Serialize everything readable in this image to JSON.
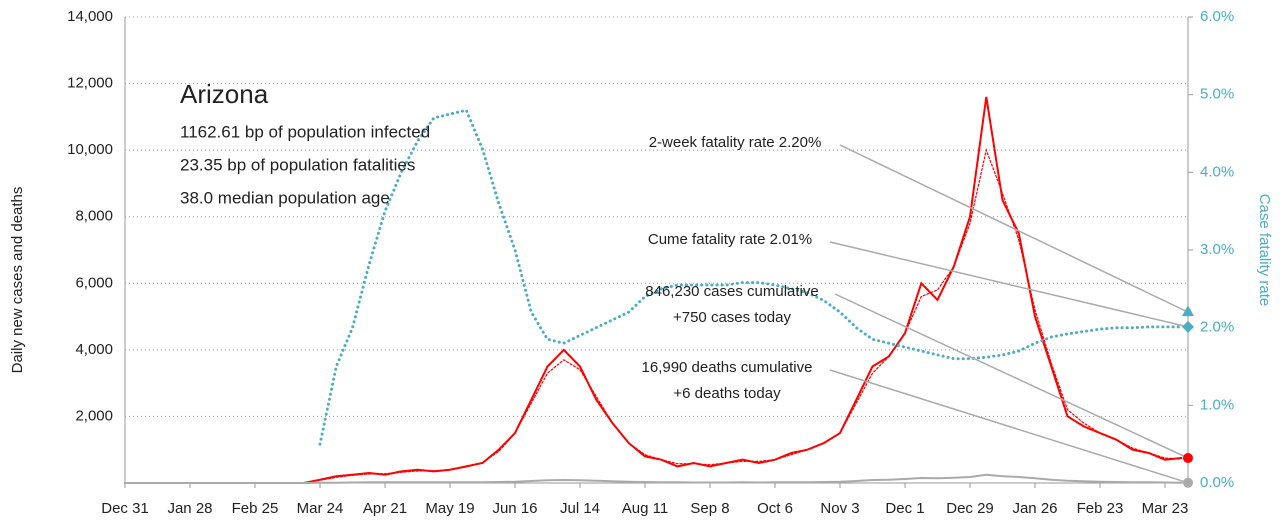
{
  "chart_data": {
    "type": "line",
    "categories": [
      "Dec 31",
      null,
      null,
      null,
      "Jan 28",
      null,
      null,
      null,
      "Feb 25",
      null,
      null,
      null,
      "Mar 24",
      null,
      null,
      null,
      "Apr 21",
      null,
      null,
      null,
      "May 19",
      null,
      null,
      null,
      "Jun 16",
      null,
      null,
      null,
      "Jul 14",
      null,
      null,
      null,
      "Aug 11",
      null,
      null,
      null,
      "Sep 8",
      null,
      null,
      null,
      "Oct 6",
      null,
      null,
      null,
      "Nov 3",
      null,
      null,
      null,
      "Dec 1",
      null,
      null,
      null,
      "Dec 29",
      null,
      null,
      null,
      "Jan 26",
      null,
      null,
      null,
      "Feb 23",
      null,
      null,
      null,
      "Mar 23",
      null
    ],
    "ylabel": "Daily new cases and deaths",
    "y2label": "Case fatality rate",
    "ylim": [
      0,
      14000
    ],
    "yticks": [
      {
        "value": 2000,
        "label": "2,000"
      },
      {
        "value": 4000,
        "label": "4,000"
      },
      {
        "value": 6000,
        "label": "6,000"
      },
      {
        "value": 8000,
        "label": "8,000"
      },
      {
        "value": 10000,
        "label": "10,000"
      },
      {
        "value": 12000,
        "label": "12,000"
      },
      {
        "value": 14000,
        "label": "14,000"
      }
    ],
    "y2lim": [
      0,
      6
    ],
    "y2ticks": [
      {
        "value": 0,
        "label": "0.0%"
      },
      {
        "value": 1,
        "label": "1.0%"
      },
      {
        "value": 2,
        "label": "2.0%"
      },
      {
        "value": 3,
        "label": "3.0%"
      },
      {
        "value": 4,
        "label": "4.0%"
      },
      {
        "value": 5,
        "label": "5.0%"
      },
      {
        "value": 6,
        "label": "6.0%"
      }
    ],
    "grid": true,
    "series": [
      {
        "name": "Daily new cases",
        "color": "#ff0000",
        "dash": "solid",
        "axis": "y",
        "values": [
          0,
          0,
          0,
          0,
          0,
          0,
          0,
          0,
          0,
          0,
          0,
          0,
          100,
          200,
          250,
          300,
          250,
          350,
          400,
          350,
          400,
          500,
          600,
          1000,
          1500,
          2500,
          3500,
          4000,
          3500,
          2500,
          1800,
          1200,
          800,
          700,
          500,
          600,
          500,
          600,
          700,
          600,
          700,
          900,
          1000,
          1200,
          1500,
          2500,
          3500,
          3800,
          4500,
          6000,
          5500,
          6500,
          8000,
          11600,
          8500,
          7500,
          5000,
          3500,
          2000,
          1700,
          1500,
          1300,
          1000,
          900,
          700,
          750
        ]
      },
      {
        "name": "Moving average",
        "color": "#ff0000",
        "dash": "dotted",
        "axis": "y",
        "values": [
          0,
          0,
          0,
          0,
          0,
          0,
          0,
          0,
          0,
          0,
          0,
          0,
          80,
          170,
          230,
          270,
          280,
          320,
          360,
          370,
          400,
          480,
          620,
          950,
          1500,
          2400,
          3300,
          3700,
          3400,
          2600,
          1800,
          1200,
          850,
          700,
          580,
          580,
          550,
          600,
          650,
          650,
          700,
          850,
          1000,
          1200,
          1500,
          2400,
          3300,
          3800,
          4500,
          5600,
          5800,
          6500,
          7800,
          10000,
          8700,
          7300,
          5200,
          3600,
          2200,
          1800,
          1500,
          1300,
          1050,
          900,
          750,
          720
        ]
      },
      {
        "name": "Daily new deaths",
        "color": "#aaaaaa",
        "dash": "solid",
        "axis": "y",
        "values": [
          0,
          0,
          0,
          0,
          0,
          0,
          0,
          0,
          0,
          0,
          0,
          0,
          5,
          10,
          15,
          20,
          20,
          25,
          20,
          20,
          20,
          20,
          25,
          30,
          40,
          60,
          80,
          90,
          80,
          70,
          50,
          40,
          30,
          20,
          20,
          15,
          15,
          15,
          20,
          15,
          20,
          20,
          25,
          30,
          40,
          60,
          90,
          100,
          120,
          150,
          140,
          160,
          180,
          250,
          200,
          180,
          140,
          100,
          70,
          50,
          40,
          30,
          25,
          20,
          15,
          6
        ]
      },
      {
        "name": "Case fatality rate",
        "color": "#4bacc6",
        "dash": "dotted",
        "axis": "y2",
        "values": [
          null,
          null,
          null,
          null,
          null,
          null,
          null,
          null,
          null,
          null,
          null,
          null,
          0.5,
          1.5,
          2.0,
          2.8,
          3.5,
          4.0,
          4.4,
          4.7,
          4.75,
          4.8,
          4.3,
          3.6,
          3.0,
          2.2,
          1.85,
          1.8,
          1.9,
          2.0,
          2.1,
          2.2,
          2.4,
          2.5,
          2.55,
          2.55,
          2.55,
          2.55,
          2.58,
          2.58,
          2.55,
          2.5,
          2.45,
          2.35,
          2.2,
          2.0,
          1.85,
          1.8,
          1.75,
          1.7,
          1.65,
          1.6,
          1.6,
          1.62,
          1.65,
          1.7,
          1.8,
          1.88,
          1.92,
          1.95,
          1.98,
          2.0,
          2.0,
          2.01,
          2.01,
          2.01
        ]
      }
    ],
    "info": {
      "title": "Arizona",
      "lines": [
        "1162.61 bp of population infected",
        "23.35 bp of population fatalities",
        "38.0 median population age"
      ]
    },
    "callouts": [
      {
        "lines": [
          "2-week fatality rate 2.20%"
        ],
        "value": 2.2,
        "axis": "y2",
        "shape": "triangle",
        "color": "#4bacc6"
      },
      {
        "lines": [
          "Cume fatality rate 2.01%"
        ],
        "value": 2.01,
        "axis": "y2",
        "shape": "diamond",
        "color": "#4bacc6"
      },
      {
        "lines": [
          "846,230 cases cumulative",
          "+750 cases today"
        ],
        "value": 750,
        "axis": "y",
        "shape": "circle",
        "color": "#ff0000"
      },
      {
        "lines": [
          "16,990 deaths cumulative",
          "+6 deaths today"
        ],
        "value": 6,
        "axis": "y",
        "shape": "circle",
        "color": "#aaaaaa"
      }
    ]
  }
}
